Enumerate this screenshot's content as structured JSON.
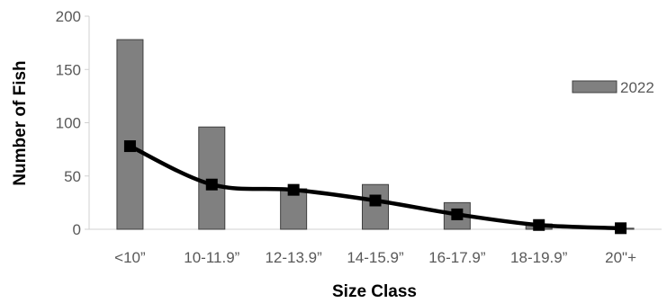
{
  "chart_data": {
    "type": "bar",
    "categories": [
      "<10”",
      "10-11.9”",
      "12-13.9”",
      "14-15.9”",
      "16-17.9”",
      "18-19.9”",
      "20\"+"
    ],
    "series": [
      {
        "name": "2022",
        "type": "bar",
        "values": [
          178,
          96,
          38,
          42,
          25,
          5,
          1
        ]
      },
      {
        "type": "line",
        "values": [
          78,
          42,
          37,
          27,
          14,
          4,
          1
        ]
      }
    ],
    "xlabel": "Size Class",
    "ylabel": "Number of Fish",
    "ylim": [
      0,
      200
    ],
    "yticks": [
      0,
      50,
      100,
      150,
      200
    ],
    "legend_position": "right",
    "grid": false,
    "colors": {
      "bar": "#808080",
      "bar_edge": "#404040",
      "line": "#000000",
      "marker": "#000000",
      "axis": "#d0d0d0",
      "text": "#595959"
    }
  }
}
